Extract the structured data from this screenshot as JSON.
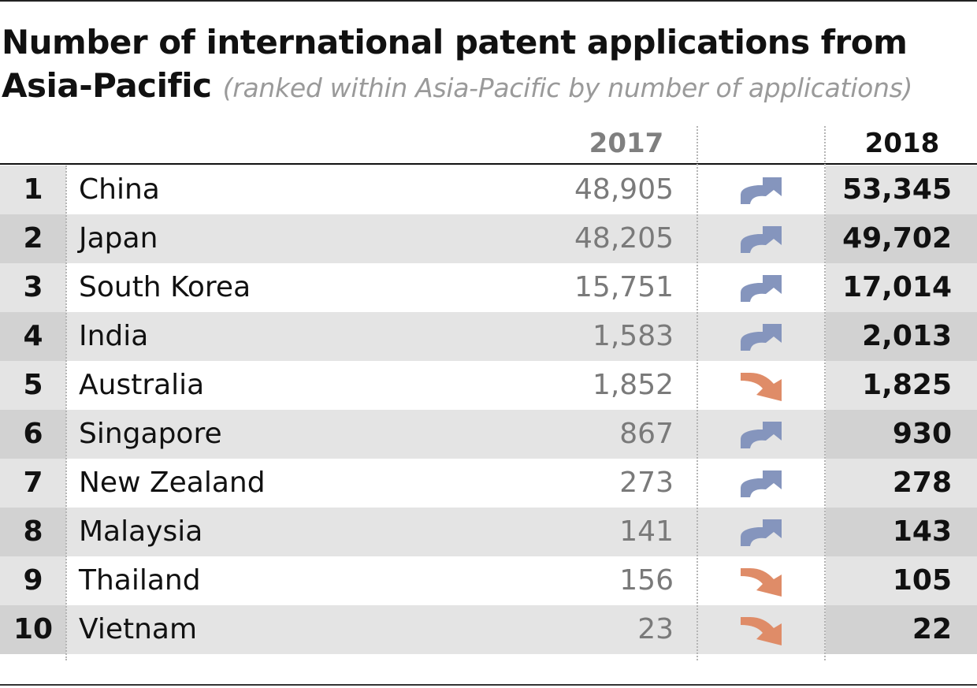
{
  "title": {
    "main": "Number of international patent applications from Asia-Pacific",
    "subtitle": "(ranked within Asia-Pacific by number of applications)"
  },
  "columns": {
    "year_a": "2017",
    "year_b": "2018"
  },
  "colors": {
    "up_arrow": "#8595bd",
    "down_arrow": "#df8c68",
    "row_shade": "#e4e4e4",
    "rank_shade_dark": "#d2d2d2",
    "rank_shade_light": "#e4e4e4",
    "value_shade_dark": "#d2d2d2",
    "value_shade_light": "#e4e4e4"
  },
  "chart_data": {
    "type": "table",
    "title": "Number of international patent applications from Asia-Pacific",
    "subtitle": "(ranked within Asia-Pacific by number of applications)",
    "columns": [
      "2017",
      "2018"
    ],
    "rows": [
      {
        "rank": "1",
        "country": "China",
        "v2017": "48,905",
        "v2018": "53,345",
        "trend": "up"
      },
      {
        "rank": "2",
        "country": "Japan",
        "v2017": "48,205",
        "v2018": "49,702",
        "trend": "up"
      },
      {
        "rank": "3",
        "country": "South Korea",
        "v2017": "15,751",
        "v2018": "17,014",
        "trend": "up"
      },
      {
        "rank": "4",
        "country": "India",
        "v2017": "1,583",
        "v2018": "2,013",
        "trend": "up"
      },
      {
        "rank": "5",
        "country": "Australia",
        "v2017": "1,852",
        "v2018": "1,825",
        "trend": "down"
      },
      {
        "rank": "6",
        "country": "Singapore",
        "v2017": "867",
        "v2018": "930",
        "trend": "up"
      },
      {
        "rank": "7",
        "country": "New Zealand",
        "v2017": "273",
        "v2018": "278",
        "trend": "up"
      },
      {
        "rank": "8",
        "country": "Malaysia",
        "v2017": "141",
        "v2018": "143",
        "trend": "up"
      },
      {
        "rank": "9",
        "country": "Thailand",
        "v2017": "156",
        "v2018": "105",
        "trend": "down"
      },
      {
        "rank": "10",
        "country": "Vietnam",
        "v2017": "23",
        "v2018": "22",
        "trend": "down"
      }
    ]
  }
}
